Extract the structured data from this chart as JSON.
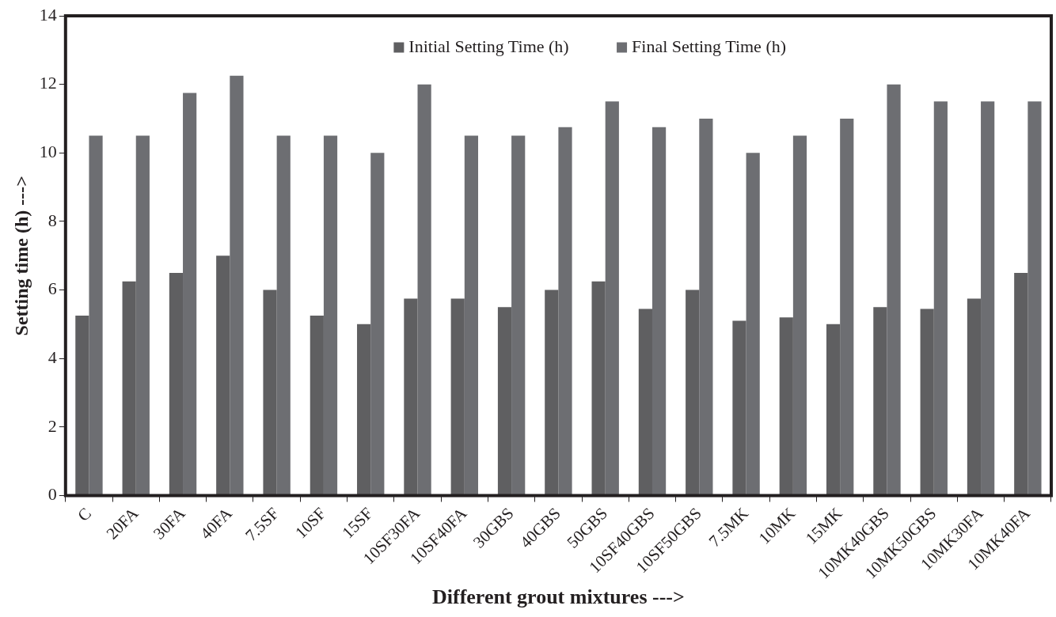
{
  "chart_data": {
    "type": "bar",
    "xlabel": "Different grout mixtures --->",
    "ylabel": "Setting time (h) --->",
    "categories": [
      "C",
      "20FA",
      "30FA",
      "40FA",
      "7.5SF",
      "10SF",
      "15SF",
      "10SF30FA",
      "10SF40FA",
      "30GBS",
      "40GBS",
      "50GBS",
      "10SF40GBS",
      "10SF50GBS",
      "7.5MK",
      "10MK",
      "15MK",
      "10MK40GBS",
      "10MK50GBS",
      "10MK30FA",
      "10MK40FA"
    ],
    "series": [
      {
        "name": "Initial Setting Time (h)",
        "color": "#5f5f61",
        "values": [
          5.25,
          6.25,
          6.5,
          7,
          6,
          5.25,
          5,
          5.75,
          5.75,
          5.5,
          6,
          6.25,
          5.45,
          6,
          5.1,
          5.2,
          5,
          5.5,
          5.45,
          5.75,
          6.5
        ]
      },
      {
        "name": "Final Setting Time (h)",
        "color": "#6d6e72",
        "values": [
          10.5,
          10.5,
          11.75,
          12.25,
          10.5,
          10.5,
          10,
          12,
          10.5,
          10.5,
          10.75,
          11.5,
          10.75,
          11,
          10,
          10.5,
          11,
          12,
          11.5,
          11.5,
          11.5
        ]
      }
    ],
    "ylim": [
      0,
      14
    ],
    "yticks": [
      0,
      2,
      4,
      6,
      8,
      10,
      12,
      14
    ],
    "grid": false,
    "legend": "top"
  }
}
